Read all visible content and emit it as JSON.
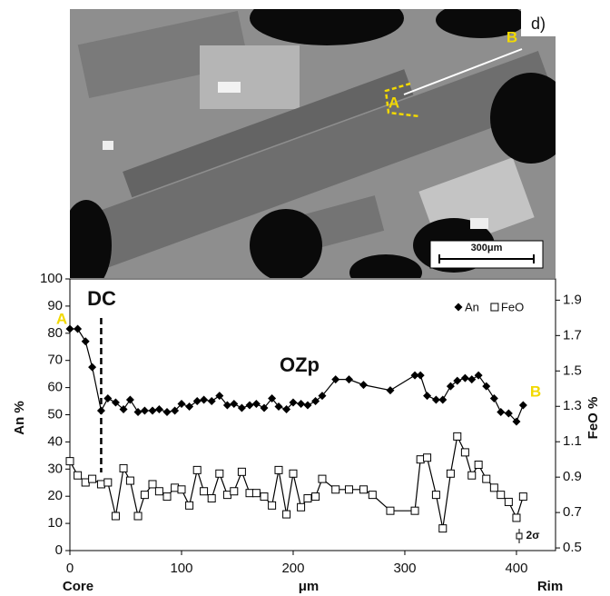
{
  "image": {
    "panel_label": "d)",
    "point_a": "A",
    "point_b": "B",
    "scale_bar": "300μm"
  },
  "chart_data": {
    "type": "line",
    "xlabel": "μm",
    "x_left_label": "Core",
    "x_right_label": "Rim",
    "ylabel": "An %",
    "y2label": "FeO %",
    "annotations": [
      {
        "text": "DC",
        "x": 28
      },
      {
        "text": "OZp"
      },
      {
        "text": "A"
      },
      {
        "text": "B"
      },
      {
        "text": "2σ"
      }
    ],
    "xlim": [
      0,
      435
    ],
    "xticks": [
      0,
      100,
      200,
      300,
      400
    ],
    "ylim": [
      0,
      100
    ],
    "yticks": [
      0,
      10,
      20,
      30,
      40,
      50,
      60,
      70,
      80,
      90,
      100
    ],
    "y2lim": [
      0.485,
      2.02
    ],
    "y2ticks": [
      0.5,
      0.7,
      0.9,
      1.1,
      1.3,
      1.5,
      1.7,
      1.9
    ],
    "legend": "upper right",
    "series": [
      {
        "name": "An",
        "color": "#000000",
        "marker": "diamond",
        "x": [
          0,
          7,
          14,
          20,
          28,
          34,
          41,
          48,
          54,
          61,
          67,
          74,
          80,
          87,
          94,
          100,
          107,
          114,
          120,
          127,
          134,
          141,
          147,
          154,
          161,
          167,
          174,
          181,
          187,
          194,
          200,
          207,
          213,
          220,
          226,
          238,
          250,
          263,
          287,
          309,
          314,
          320,
          328,
          334,
          341,
          347,
          354,
          360,
          366,
          373,
          380,
          386,
          393,
          400,
          406
        ],
        "values": [
          81.6,
          81.6,
          77,
          67.5,
          51.5,
          56,
          54.5,
          52,
          55.5,
          51,
          51.5,
          51.5,
          52,
          51,
          51.5,
          54,
          53,
          55,
          55.5,
          55,
          57,
          53.5,
          54,
          52.5,
          53.5,
          54,
          52.5,
          56,
          53,
          52,
          54.5,
          54,
          53.5,
          55,
          57,
          63,
          63,
          61,
          59,
          64.5,
          64.5,
          57,
          55.5,
          55.5,
          60.5,
          62.5,
          63.5,
          63,
          64.5,
          60.5,
          56,
          51,
          50.5,
          47.5,
          53.5
        ]
      },
      {
        "name": "FeO",
        "color": "#000000",
        "marker": "square",
        "axis": "y2",
        "x": [
          0,
          7,
          14,
          20,
          28,
          34,
          41,
          48,
          54,
          61,
          67,
          74,
          80,
          87,
          94,
          100,
          107,
          114,
          120,
          127,
          134,
          141,
          147,
          154,
          161,
          167,
          174,
          181,
          187,
          194,
          200,
          207,
          213,
          220,
          226,
          238,
          250,
          263,
          271,
          287,
          309,
          314,
          320,
          328,
          334,
          341,
          347,
          354,
          360,
          366,
          373,
          380,
          386,
          393,
          400,
          406
        ],
        "values": [
          0.99,
          0.91,
          0.87,
          0.89,
          0.86,
          0.87,
          0.68,
          0.95,
          0.88,
          0.68,
          0.8,
          0.86,
          0.82,
          0.79,
          0.84,
          0.83,
          0.74,
          0.94,
          0.82,
          0.78,
          0.92,
          0.8,
          0.82,
          0.93,
          0.81,
          0.81,
          0.79,
          0.74,
          0.94,
          0.69,
          0.92,
          0.73,
          0.78,
          0.79,
          0.89,
          0.83,
          0.83,
          0.83,
          0.8,
          0.71,
          0.71,
          1.0,
          1.01,
          0.8,
          0.61,
          0.92,
          1.13,
          1.04,
          0.91,
          0.97,
          0.89,
          0.84,
          0.8,
          0.76,
          0.67,
          0.79
        ]
      }
    ]
  }
}
